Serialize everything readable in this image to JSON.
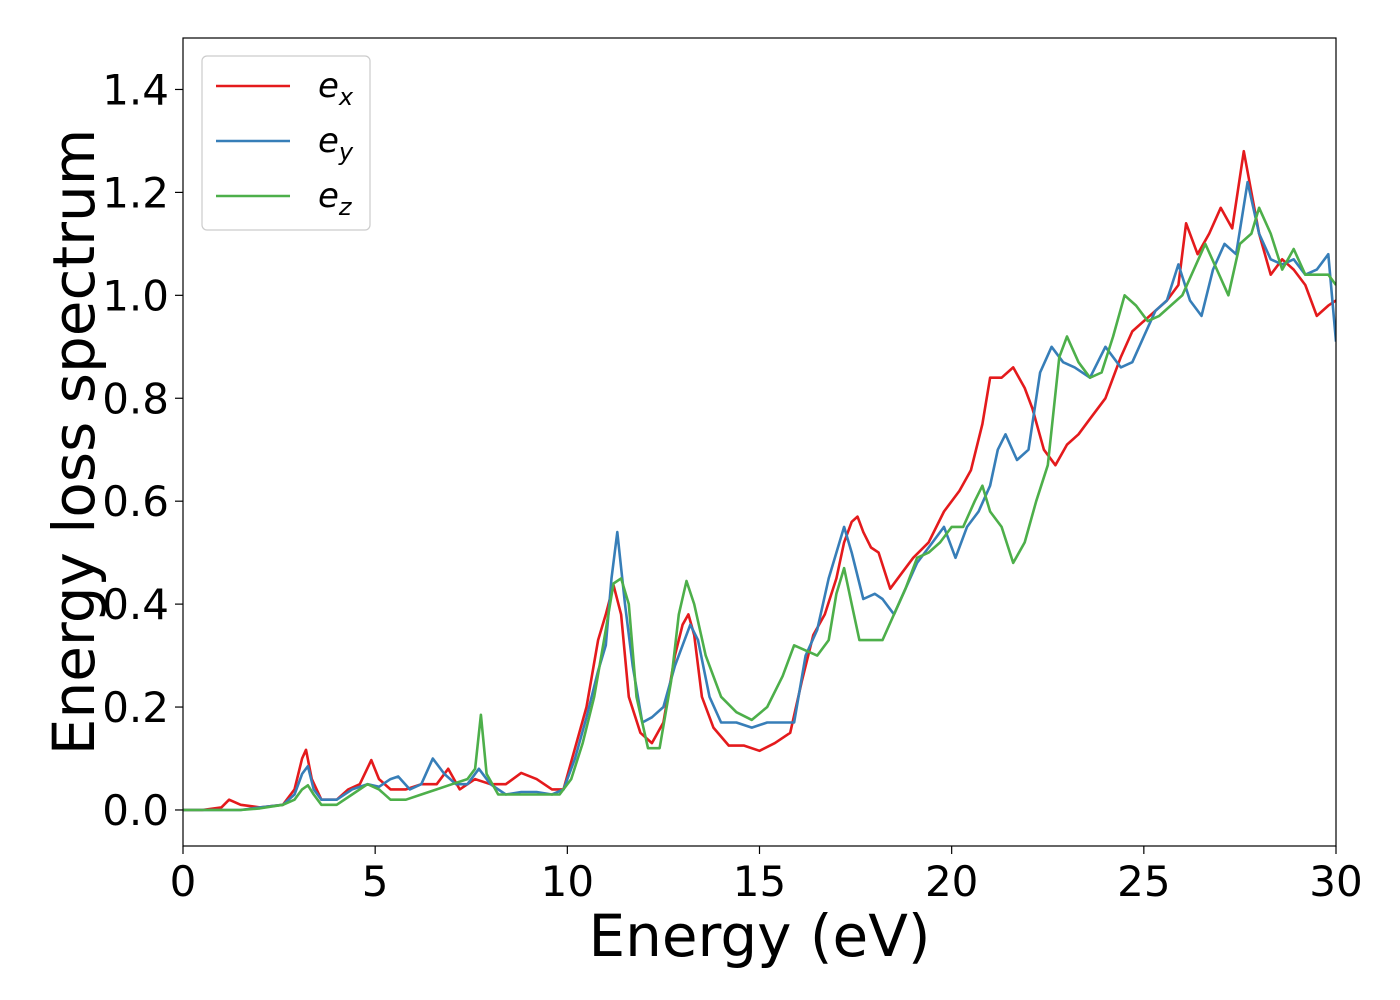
{
  "chart_data": {
    "type": "line",
    "title": "",
    "xlabel": "Energy (eV)",
    "ylabel": "Energy loss spectrum",
    "xlim": [
      0,
      30
    ],
    "ylim": [
      -0.07,
      1.5
    ],
    "xticks": [
      0,
      5,
      10,
      15,
      20,
      25,
      30
    ],
    "yticks": [
      0.0,
      0.2,
      0.4,
      0.6,
      0.8,
      1.0,
      1.2,
      1.4
    ],
    "xtick_labels": [
      "0",
      "5",
      "10",
      "15",
      "20",
      "25",
      "30"
    ],
    "ytick_labels": [
      "0.0",
      "0.2",
      "0.4",
      "0.6",
      "0.8",
      "1.0",
      "1.2",
      "1.4"
    ],
    "grid": false,
    "legend_position": "top-left",
    "series": [
      {
        "name": "e",
        "name_sub": "x",
        "color": "#e41a1c",
        "x": [
          0,
          0.5,
          1.0,
          1.2,
          1.5,
          2.0,
          2.6,
          2.9,
          3.1,
          3.2,
          3.35,
          3.6,
          4.0,
          4.3,
          4.6,
          4.9,
          5.1,
          5.4,
          5.8,
          6.2,
          6.6,
          6.9,
          7.2,
          7.6,
          8.0,
          8.4,
          8.8,
          9.2,
          9.6,
          9.9,
          10.2,
          10.5,
          10.8,
          11.0,
          11.2,
          11.4,
          11.6,
          11.9,
          12.2,
          12.5,
          12.8,
          13.0,
          13.15,
          13.3,
          13.5,
          13.8,
          14.2,
          14.6,
          15.0,
          15.4,
          15.8,
          16.1,
          16.4,
          16.7,
          17.0,
          17.2,
          17.4,
          17.55,
          17.7,
          17.9,
          18.1,
          18.4,
          18.7,
          19.0,
          19.4,
          19.8,
          20.2,
          20.5,
          20.8,
          21.0,
          21.3,
          21.6,
          21.9,
          22.1,
          22.4,
          22.7,
          23.0,
          23.3,
          23.6,
          24.0,
          24.4,
          24.7,
          25.0,
          25.3,
          25.6,
          25.9,
          26.1,
          26.4,
          26.7,
          27.0,
          27.3,
          27.6,
          27.8,
          28.0,
          28.3,
          28.6,
          28.9,
          29.2,
          29.5,
          29.8,
          30.0
        ],
        "y": [
          0.0,
          0.0,
          0.005,
          0.02,
          0.01,
          0.005,
          0.01,
          0.04,
          0.1,
          0.117,
          0.06,
          0.02,
          0.02,
          0.04,
          0.05,
          0.097,
          0.06,
          0.04,
          0.04,
          0.05,
          0.05,
          0.08,
          0.04,
          0.06,
          0.05,
          0.05,
          0.072,
          0.06,
          0.04,
          0.04,
          0.12,
          0.2,
          0.33,
          0.38,
          0.437,
          0.38,
          0.22,
          0.15,
          0.13,
          0.17,
          0.3,
          0.36,
          0.38,
          0.34,
          0.22,
          0.16,
          0.125,
          0.125,
          0.115,
          0.13,
          0.15,
          0.25,
          0.34,
          0.38,
          0.45,
          0.52,
          0.56,
          0.57,
          0.54,
          0.51,
          0.5,
          0.43,
          0.46,
          0.49,
          0.52,
          0.58,
          0.62,
          0.66,
          0.75,
          0.84,
          0.84,
          0.86,
          0.82,
          0.78,
          0.7,
          0.67,
          0.71,
          0.73,
          0.76,
          0.8,
          0.88,
          0.93,
          0.95,
          0.97,
          0.99,
          1.02,
          1.14,
          1.08,
          1.12,
          1.17,
          1.13,
          1.28,
          1.2,
          1.12,
          1.04,
          1.07,
          1.05,
          1.02,
          0.96,
          0.98,
          0.99
        ]
      },
      {
        "name": "e",
        "name_sub": "y",
        "color": "#377eb8",
        "x": [
          0,
          0.5,
          1.0,
          1.5,
          2.0,
          2.6,
          2.9,
          3.1,
          3.25,
          3.4,
          3.6,
          4.0,
          4.4,
          4.8,
          5.1,
          5.4,
          5.6,
          5.9,
          6.2,
          6.5,
          6.8,
          7.1,
          7.4,
          7.7,
          8.0,
          8.4,
          8.8,
          9.2,
          9.6,
          9.9,
          10.2,
          10.5,
          10.8,
          11.0,
          11.15,
          11.3,
          11.5,
          11.7,
          11.95,
          12.2,
          12.5,
          12.8,
          13.0,
          13.2,
          13.4,
          13.7,
          14.0,
          14.4,
          14.8,
          15.2,
          15.6,
          15.9,
          16.2,
          16.5,
          16.8,
          17.0,
          17.2,
          17.4,
          17.7,
          18.0,
          18.2,
          18.5,
          18.8,
          19.1,
          19.5,
          19.8,
          20.1,
          20.4,
          20.7,
          21.0,
          21.2,
          21.4,
          21.7,
          22.0,
          22.3,
          22.6,
          22.9,
          23.2,
          23.6,
          24.0,
          24.4,
          24.7,
          25.0,
          25.3,
          25.6,
          25.9,
          26.2,
          26.5,
          26.8,
          27.1,
          27.4,
          27.7,
          28.0,
          28.3,
          28.6,
          28.9,
          29.2,
          29.5,
          29.8,
          30.0
        ],
        "y": [
          0.0,
          0.0,
          0.0,
          0.0,
          0.005,
          0.01,
          0.03,
          0.07,
          0.085,
          0.04,
          0.02,
          0.02,
          0.04,
          0.05,
          0.045,
          0.06,
          0.065,
          0.04,
          0.05,
          0.1,
          0.07,
          0.05,
          0.05,
          0.08,
          0.05,
          0.03,
          0.035,
          0.035,
          0.03,
          0.04,
          0.1,
          0.18,
          0.27,
          0.32,
          0.45,
          0.54,
          0.4,
          0.28,
          0.17,
          0.18,
          0.2,
          0.28,
          0.32,
          0.36,
          0.33,
          0.22,
          0.17,
          0.17,
          0.16,
          0.17,
          0.17,
          0.17,
          0.3,
          0.35,
          0.45,
          0.5,
          0.55,
          0.5,
          0.41,
          0.42,
          0.41,
          0.38,
          0.43,
          0.48,
          0.52,
          0.55,
          0.49,
          0.55,
          0.58,
          0.63,
          0.7,
          0.73,
          0.68,
          0.7,
          0.85,
          0.9,
          0.87,
          0.86,
          0.84,
          0.9,
          0.86,
          0.87,
          0.92,
          0.97,
          0.99,
          1.06,
          0.99,
          0.96,
          1.05,
          1.1,
          1.08,
          1.22,
          1.12,
          1.07,
          1.06,
          1.07,
          1.04,
          1.05,
          1.08,
          0.91
        ]
      },
      {
        "name": "e",
        "name_sub": "z",
        "color": "#4daf4a",
        "x": [
          0,
          0.5,
          1.0,
          1.5,
          2.0,
          2.6,
          2.9,
          3.1,
          3.25,
          3.4,
          3.6,
          4.0,
          4.4,
          4.8,
          5.1,
          5.4,
          5.8,
          6.2,
          6.6,
          7.0,
          7.4,
          7.6,
          7.75,
          7.9,
          8.2,
          8.6,
          9.0,
          9.4,
          9.8,
          10.1,
          10.4,
          10.7,
          11.0,
          11.2,
          11.4,
          11.6,
          11.8,
          12.1,
          12.4,
          12.7,
          12.9,
          13.1,
          13.3,
          13.6,
          14.0,
          14.4,
          14.8,
          15.2,
          15.6,
          15.9,
          16.2,
          16.5,
          16.8,
          17.0,
          17.2,
          17.4,
          17.6,
          17.9,
          18.2,
          18.5,
          18.8,
          19.1,
          19.4,
          19.7,
          20.0,
          20.3,
          20.6,
          20.8,
          21.0,
          21.3,
          21.6,
          21.9,
          22.2,
          22.5,
          22.8,
          23.0,
          23.3,
          23.6,
          23.9,
          24.2,
          24.5,
          24.8,
          25.1,
          25.4,
          25.7,
          26.0,
          26.3,
          26.6,
          26.9,
          27.2,
          27.5,
          27.8,
          28.0,
          28.3,
          28.6,
          28.9,
          29.2,
          29.5,
          29.8,
          30.0
        ],
        "y": [
          0.0,
          0.0,
          0.0,
          0.0,
          0.003,
          0.01,
          0.02,
          0.04,
          0.048,
          0.03,
          0.01,
          0.01,
          0.03,
          0.05,
          0.04,
          0.02,
          0.02,
          0.03,
          0.04,
          0.05,
          0.06,
          0.08,
          0.185,
          0.07,
          0.03,
          0.03,
          0.03,
          0.03,
          0.03,
          0.06,
          0.13,
          0.22,
          0.35,
          0.44,
          0.45,
          0.4,
          0.22,
          0.12,
          0.12,
          0.25,
          0.38,
          0.445,
          0.4,
          0.3,
          0.22,
          0.19,
          0.175,
          0.2,
          0.26,
          0.32,
          0.31,
          0.3,
          0.33,
          0.42,
          0.47,
          0.4,
          0.33,
          0.33,
          0.33,
          0.38,
          0.43,
          0.49,
          0.5,
          0.52,
          0.55,
          0.55,
          0.6,
          0.63,
          0.58,
          0.55,
          0.48,
          0.52,
          0.6,
          0.67,
          0.88,
          0.92,
          0.87,
          0.84,
          0.85,
          0.92,
          1.0,
          0.98,
          0.95,
          0.96,
          0.98,
          1.0,
          1.05,
          1.1,
          1.05,
          1.0,
          1.1,
          1.12,
          1.17,
          1.12,
          1.05,
          1.09,
          1.04,
          1.04,
          1.04,
          1.02
        ]
      }
    ]
  }
}
